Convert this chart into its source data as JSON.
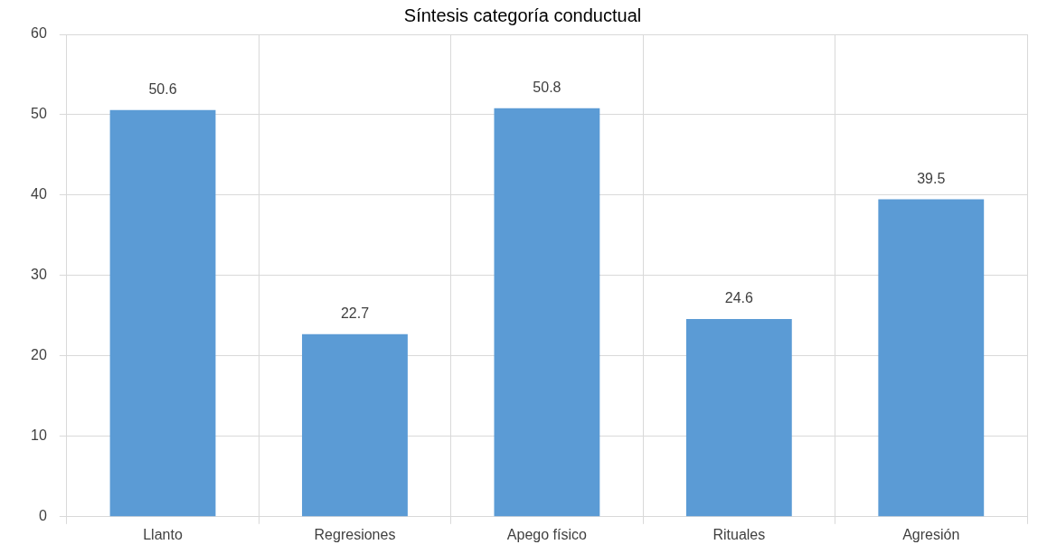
{
  "chart_data": {
    "type": "bar",
    "title": "Síntesis categoría conductual",
    "categories": [
      "Llanto",
      "Regresiones",
      "Apego físico",
      "Rituales",
      "Agresión"
    ],
    "values": [
      50.6,
      22.7,
      50.8,
      24.6,
      39.5
    ],
    "color": "#5b9bd5",
    "ylim": [
      0,
      60
    ],
    "yticks": [
      0,
      10,
      20,
      30,
      40,
      50,
      60
    ],
    "grid": true,
    "data_labels": true
  }
}
